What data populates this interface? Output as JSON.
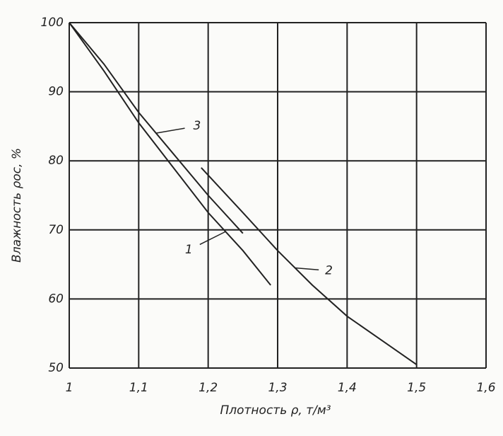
{
  "chart_data": {
    "type": "line",
    "x_label": "Плотность ρ, т/м³",
    "y_label": "Влажность ρос, %",
    "xlim": [
      1,
      1.6
    ],
    "xticks": [
      1,
      {
        "value": 1.1,
        "label": "1,1"
      },
      {
        "value": 1.2,
        "label": "1,2"
      },
      {
        "value": 1.3,
        "label": "1,3"
      },
      {
        "value": 1.4,
        "label": "1,4"
      },
      {
        "value": 1.5,
        "label": "1,5"
      },
      {
        "value": 1.6,
        "label": "1,6"
      }
    ],
    "ylim": [
      50,
      100
    ],
    "yticks": [
      50,
      60,
      70,
      80,
      90,
      100
    ],
    "grid": true,
    "series": [
      {
        "name": "1",
        "color": "#222222",
        "x": [
          1,
          1.05,
          1.1,
          1.15,
          1.2,
          1.25,
          1.29
        ],
        "values": [
          100,
          93,
          85.5,
          79,
          72.5,
          67,
          62
        ]
      },
      {
        "name": "2",
        "color": "#222222",
        "x": [
          1.19,
          1.25,
          1.3,
          1.35,
          1.4,
          1.45,
          1.5
        ],
        "values": [
          79,
          72.5,
          67,
          62,
          57.5,
          54,
          50.5
        ]
      },
      {
        "name": "3",
        "color": "#222222",
        "x": [
          1,
          1.05,
          1.1,
          1.15,
          1.2,
          1.25
        ],
        "values": [
          100,
          94,
          87,
          81,
          75,
          69.5
        ]
      }
    ]
  }
}
